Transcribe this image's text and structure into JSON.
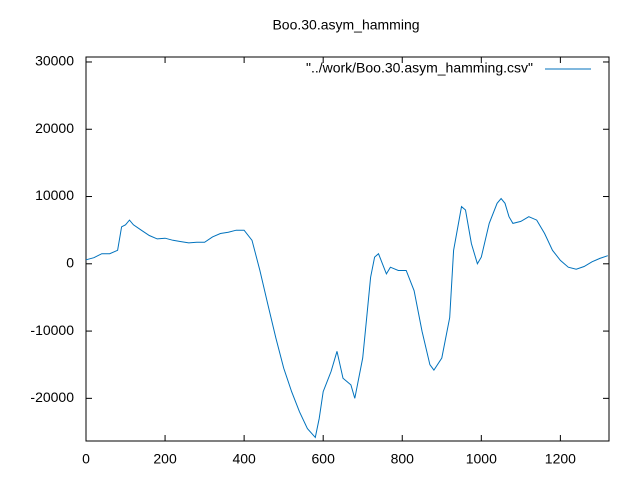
{
  "chart_data": {
    "type": "line",
    "title": "Boo.30.asym_hamming",
    "x": [
      0,
      20,
      40,
      60,
      80,
      90,
      100,
      110,
      120,
      140,
      160,
      180,
      200,
      220,
      240,
      260,
      280,
      300,
      320,
      340,
      360,
      380,
      400,
      420,
      440,
      460,
      480,
      500,
      520,
      540,
      560,
      580,
      590,
      600,
      620,
      635,
      650,
      670,
      680,
      700,
      710,
      720,
      730,
      740,
      760,
      770,
      790,
      810,
      830,
      850,
      870,
      880,
      900,
      920,
      930,
      950,
      960,
      975,
      990,
      1000,
      1020,
      1040,
      1050,
      1060,
      1070,
      1080,
      1100,
      1120,
      1140,
      1160,
      1180,
      1200,
      1220,
      1240,
      1260,
      1280,
      1300,
      1320
    ],
    "series": [
      {
        "name": "\"../work/Boo.30.asym_hamming.csv\"",
        "color": "#0072bd",
        "values": [
          600,
          900,
          1500,
          1500,
          2000,
          5500,
          5800,
          6500,
          5800,
          5000,
          4200,
          3700,
          3800,
          3500,
          3300,
          3100,
          3200,
          3200,
          4000,
          4500,
          4700,
          5000,
          5000,
          3500,
          -1000,
          -6000,
          -11000,
          -15500,
          -19000,
          -22000,
          -24500,
          -25800,
          -23000,
          -19000,
          -16000,
          -13000,
          -17000,
          -18000,
          -20000,
          -14000,
          -8000,
          -2000,
          1000,
          1500,
          -1500,
          -500,
          -1000,
          -1000,
          -4000,
          -10000,
          -15000,
          -15800,
          -14000,
          -8000,
          2000,
          8500,
          8000,
          3000,
          0,
          1000,
          6000,
          9000,
          9700,
          9000,
          7000,
          6000,
          6300,
          7000,
          6500,
          4500,
          2000,
          500,
          -500,
          -800,
          -400,
          300,
          800,
          1200
        ]
      }
    ],
    "xlim": [
      0,
      1323
    ],
    "ylim": [
      -26340,
      30740
    ],
    "xticks": [
      0,
      200,
      400,
      600,
      800,
      1000,
      1200
    ],
    "yticks": [
      -20000,
      -10000,
      0,
      10000,
      20000,
      30000
    ],
    "legend": "top-right"
  }
}
